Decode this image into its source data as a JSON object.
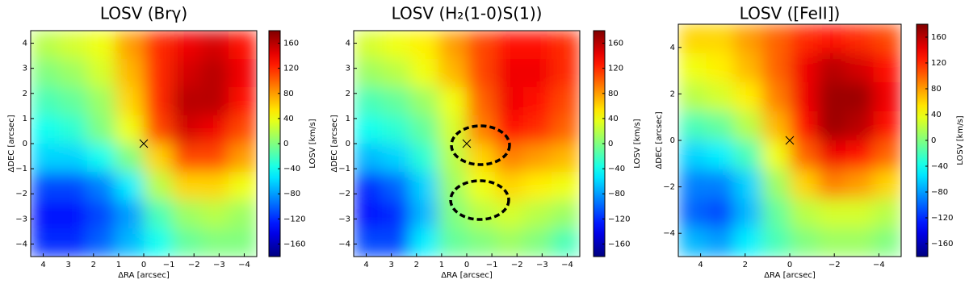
{
  "chart_data": [
    {
      "type": "heatmap",
      "title": "LOSV (Brγ)",
      "xlabel": "ΔRA [arcsec]",
      "ylabel": "ΔDEC [arcsec]",
      "colorbar_label": "LOSV [km/s]",
      "colormap": "jet",
      "xlim": [
        4.5,
        -4.5
      ],
      "ylim": [
        -4.5,
        4.5
      ],
      "xticks": [
        4,
        3,
        2,
        1,
        0,
        {
          "value": -1,
          "label": "−1"
        },
        {
          "value": -2,
          "label": "−2"
        },
        {
          "value": -3,
          "label": "−3"
        },
        {
          "value": -4,
          "label": "−4"
        }
      ],
      "yticks": [
        {
          "value": -4,
          "label": "−4"
        },
        {
          "value": -3,
          "label": "−3"
        },
        {
          "value": -2,
          "label": "−2"
        },
        {
          "value": -1,
          "label": "−1"
        },
        0,
        1,
        2,
        3,
        4
      ],
      "clim": [
        -180,
        180
      ],
      "cticks": [
        {
          "value": -160,
          "label": "−160"
        },
        {
          "value": -120,
          "label": "−120"
        },
        {
          "value": -80,
          "label": "−80"
        },
        {
          "value": -40,
          "label": "−40"
        },
        0,
        40,
        80,
        120,
        160
      ],
      "z": [
        [
          20,
          30,
          40,
          80,
          120,
          140,
          150,
          130
        ],
        [
          0,
          10,
          30,
          70,
          120,
          150,
          160,
          140
        ],
        [
          -20,
          -10,
          10,
          60,
          120,
          160,
          160,
          130
        ],
        [
          -40,
          -30,
          0,
          40,
          110,
          150,
          140,
          110
        ],
        [
          -60,
          -60,
          -40,
          0,
          60,
          110,
          110,
          80
        ],
        [
          -110,
          -110,
          -90,
          -50,
          20,
          60,
          60,
          40
        ],
        [
          -130,
          -130,
          -110,
          -80,
          -20,
          10,
          20,
          10
        ],
        [
          -120,
          -120,
          -100,
          -70,
          -40,
          -10,
          0,
          0
        ]
      ]
    },
    {
      "type": "heatmap",
      "title": "LOSV (H₂(1-0)S(1))",
      "xlabel": "ΔRA [arcsec]",
      "ylabel": "ΔDEC [arcsec]",
      "colorbar_label": "LOSV [km/s]",
      "colormap": "jet",
      "xlim": [
        4.5,
        -4.5
      ],
      "ylim": [
        -4.5,
        4.5
      ],
      "xticks": [
        4,
        3,
        2,
        1,
        0,
        {
          "value": -1,
          "label": "−1"
        },
        {
          "value": -2,
          "label": "−2"
        },
        {
          "value": -3,
          "label": "−3"
        },
        {
          "value": -4,
          "label": "−4"
        }
      ],
      "yticks": [
        {
          "value": -4,
          "label": "−4"
        },
        {
          "value": -3,
          "label": "−3"
        },
        {
          "value": -2,
          "label": "−2"
        },
        {
          "value": -1,
          "label": "−1"
        },
        0,
        1,
        2,
        3,
        4
      ],
      "clim": [
        -180,
        180
      ],
      "cticks": [
        {
          "value": -160,
          "label": "−160"
        },
        {
          "value": -120,
          "label": "−120"
        },
        {
          "value": -80,
          "label": "−80"
        },
        {
          "value": -40,
          "label": "−40"
        },
        0,
        40,
        80,
        120,
        160
      ],
      "z": [
        [
          30,
          40,
          50,
          80,
          110,
          130,
          130,
          120
        ],
        [
          10,
          20,
          40,
          70,
          110,
          140,
          140,
          120
        ],
        [
          -20,
          -10,
          10,
          40,
          100,
          140,
          130,
          110
        ],
        [
          -40,
          -30,
          -10,
          30,
          90,
          130,
          120,
          100
        ],
        [
          -70,
          -60,
          -30,
          20,
          60,
          90,
          80,
          70
        ],
        [
          -120,
          -100,
          -60,
          10,
          40,
          60,
          50,
          40
        ],
        [
          -130,
          -120,
          -70,
          0,
          20,
          30,
          20,
          10
        ],
        [
          -110,
          -110,
          -50,
          -10,
          0,
          10,
          0,
          -20
        ]
      ]
    },
    {
      "type": "heatmap",
      "title": "LOSV ([FeII])",
      "xlabel": "ΔRA [arcsec]",
      "ylabel": "ΔDEC [arcsec]",
      "colorbar_label": "LOSV [km/s]",
      "colormap": "jet",
      "xlim": [
        5,
        -5
      ],
      "ylim": [
        -5,
        5
      ],
      "xticks": [
        4,
        2,
        0,
        {
          "value": -2,
          "label": "−2"
        },
        {
          "value": -4,
          "label": "−4"
        }
      ],
      "yticks": [
        {
          "value": -4,
          "label": "−4"
        },
        {
          "value": -2,
          "label": "−2"
        },
        0,
        2,
        4
      ],
      "clim": [
        -180,
        180
      ],
      "cticks": [
        {
          "value": -160,
          "label": "−160"
        },
        {
          "value": -120,
          "label": "−120"
        },
        {
          "value": -80,
          "label": "−80"
        },
        {
          "value": -40,
          "label": "−40"
        },
        0,
        40,
        80,
        120,
        160
      ],
      "z": [
        [
          60,
          60,
          80,
          100,
          120,
          130,
          120,
          110
        ],
        [
          40,
          50,
          70,
          100,
          140,
          160,
          150,
          130
        ],
        [
          20,
          30,
          50,
          90,
          140,
          170,
          170,
          140
        ],
        [
          -20,
          -10,
          20,
          70,
          130,
          170,
          160,
          130
        ],
        [
          -60,
          -50,
          -20,
          40,
          100,
          140,
          130,
          100
        ],
        [
          -90,
          -90,
          -60,
          10,
          60,
          90,
          80,
          60
        ],
        [
          -100,
          -110,
          -70,
          -10,
          20,
          30,
          30,
          20
        ],
        [
          -70,
          -80,
          -50,
          -20,
          0,
          10,
          10,
          0
        ]
      ]
    }
  ]
}
